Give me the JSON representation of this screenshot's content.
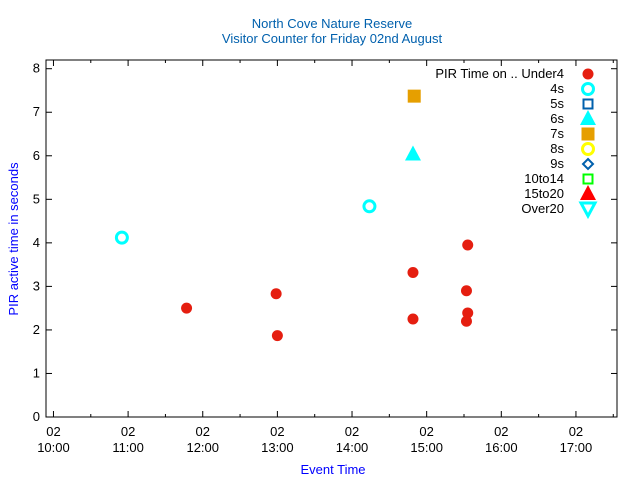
{
  "chart_data": {
    "type": "scatter",
    "title": "North Cove Nature Reserve",
    "subtitle": "Visitor Counter for Friday 02nd August",
    "xlabel": "Event Time",
    "ylabel": "PIR active time in seconds",
    "title_color": "#0060ad",
    "label_color": "#0000ff",
    "xlim": [
      "09:54",
      "17:33"
    ],
    "ylim": [
      0,
      8.2
    ],
    "x_ticks": [
      {
        "time": "10:00",
        "label": [
          "02",
          "10:00"
        ]
      },
      {
        "time": "11:00",
        "label": [
          "02",
          "11:00"
        ]
      },
      {
        "time": "12:00",
        "label": [
          "02",
          "12:00"
        ]
      },
      {
        "time": "13:00",
        "label": [
          "02",
          "13:00"
        ]
      },
      {
        "time": "14:00",
        "label": [
          "02",
          "14:00"
        ]
      },
      {
        "time": "15:00",
        "label": [
          "02",
          "15:00"
        ]
      },
      {
        "time": "16:00",
        "label": [
          "02",
          "16:00"
        ]
      },
      {
        "time": "17:00",
        "label": [
          "02",
          "17:00"
        ]
      }
    ],
    "y_ticks": [
      "0",
      "1",
      "2",
      "3",
      "4",
      "5",
      "6",
      "7",
      "8"
    ],
    "grid": false,
    "legend_placement": "top-right",
    "legend_title": "PIR Time on ..",
    "series": [
      {
        "name": "Under4",
        "marker": "filled-circle",
        "color": "#e51e10",
        "points": [
          [
            "11:47",
            2.5
          ],
          [
            "12:59",
            2.83
          ],
          [
            "13:00",
            1.87
          ],
          [
            "14:49",
            3.32
          ],
          [
            "14:49",
            2.25
          ],
          [
            "15:33",
            3.95
          ],
          [
            "15:32",
            2.9
          ],
          [
            "15:33",
            2.39
          ],
          [
            "15:32",
            2.2
          ]
        ]
      },
      {
        "name": "4s",
        "marker": "open-circle",
        "color": "#00ffff",
        "points": [
          [
            "10:55",
            4.12
          ],
          [
            "14:14",
            4.84
          ]
        ]
      },
      {
        "name": "5s",
        "marker": "open-square",
        "color": "#0060ad",
        "points": []
      },
      {
        "name": "6s",
        "marker": "filled-triangle",
        "color": "#00ffff",
        "points": [
          [
            "14:49",
            6.03
          ]
        ]
      },
      {
        "name": "7s",
        "marker": "filled-square",
        "color": "#e69f00",
        "points": [
          [
            "14:50",
            7.37
          ]
        ]
      },
      {
        "name": "8s",
        "marker": "open-circle",
        "color": "#ffff00",
        "points": []
      },
      {
        "name": "9s",
        "marker": "open-diamond",
        "color": "#0060ad",
        "points": []
      },
      {
        "name": "10to14",
        "marker": "open-square",
        "color": "#00ff00",
        "points": []
      },
      {
        "name": "15to20",
        "marker": "filled-triangle",
        "color": "#ff0000",
        "points": []
      },
      {
        "name": "Over20",
        "marker": "open-triangle-down",
        "color": "#00ffff",
        "points": []
      }
    ]
  }
}
